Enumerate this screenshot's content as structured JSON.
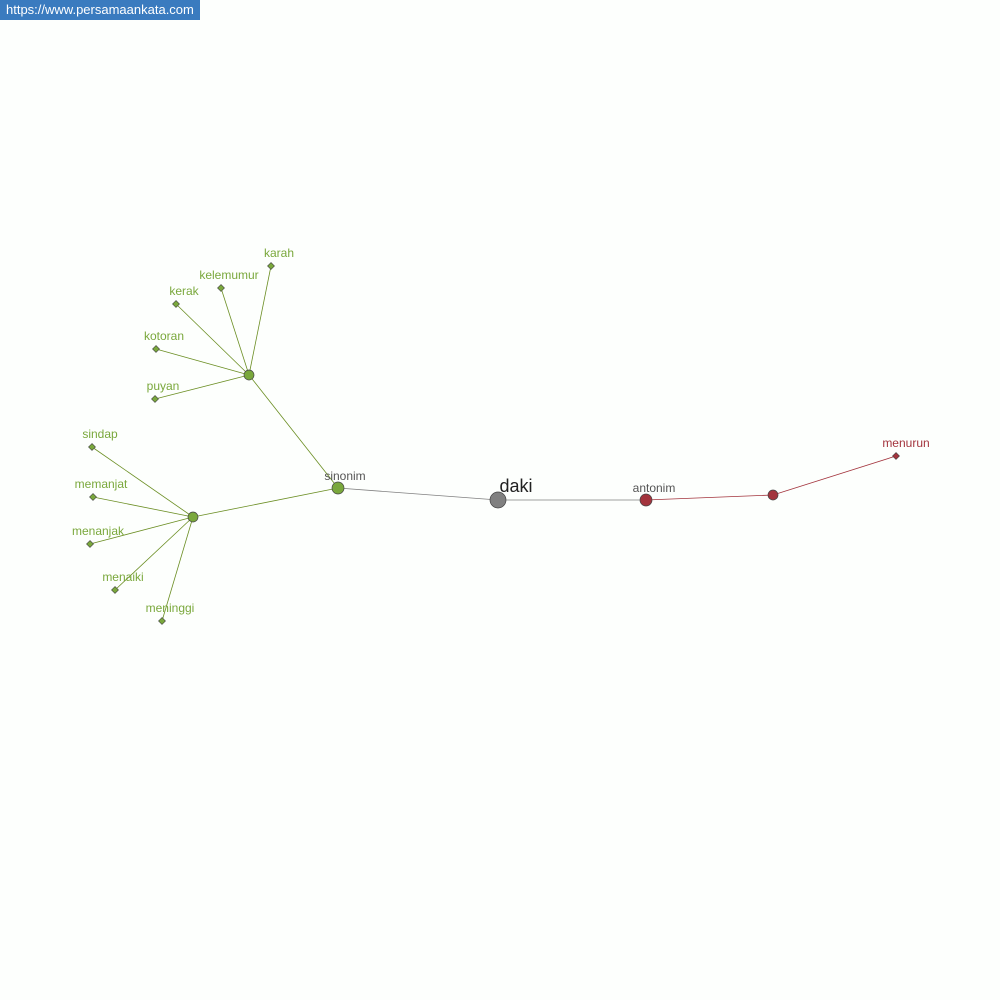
{
  "site_label": "https://www.persamaankata.com",
  "colors": {
    "synonym": "#7aa83c",
    "synonym_line": "#6b8e23",
    "antonym": "#a3343d",
    "root": "#808080",
    "relation_text": "#555555"
  },
  "graph": {
    "root": "daki",
    "synonym_label": "sinonim",
    "antonym_label": "antonim",
    "synonym_groups": [
      [
        "karah",
        "kelemumur",
        "kerak",
        "kotoran",
        "puyan"
      ],
      [
        "sindap",
        "memanjat",
        "menanjak",
        "menaiki",
        "meninggi"
      ]
    ],
    "antonyms": [
      "menurun"
    ]
  }
}
